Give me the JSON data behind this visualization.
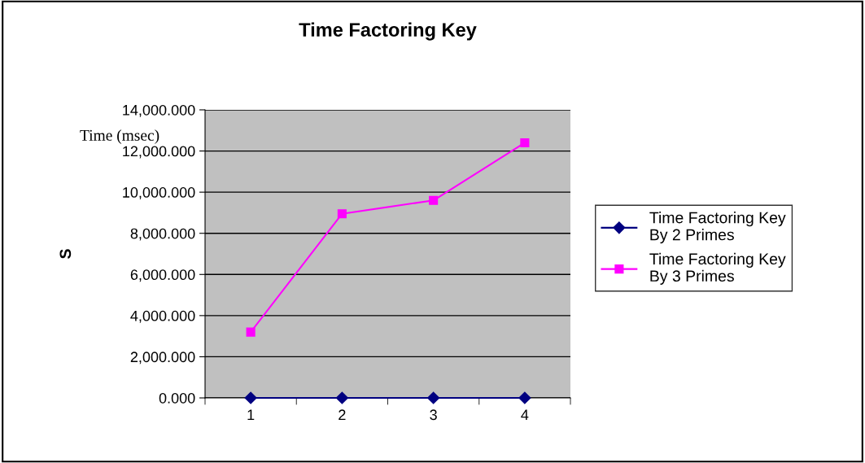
{
  "chart_data": {
    "type": "line",
    "title": "Time Factoring Key",
    "ylabel": "S",
    "annotations": [
      "Time (msec)"
    ],
    "categories": [
      "1",
      "2",
      "3",
      "4"
    ],
    "series": [
      {
        "name": "Time Factoring Key\nBy 2 Primes",
        "color": "#000080",
        "marker": "diamond",
        "values": [
          0,
          0,
          0,
          0
        ]
      },
      {
        "name": "Time Factoring Key\nBy 3 Primes",
        "color": "#ff00ff",
        "marker": "square",
        "values": [
          3200,
          8950,
          9600,
          12400
        ]
      }
    ],
    "ylim": [
      0,
      14000
    ],
    "yticks": [
      {
        "value": 0,
        "label": "0.000"
      },
      {
        "value": 2000,
        "label": "2,000.000"
      },
      {
        "value": 4000,
        "label": "4,000.000"
      },
      {
        "value": 6000,
        "label": "6,000.000"
      },
      {
        "value": 8000,
        "label": "8,000.000"
      },
      {
        "value": 10000,
        "label": "10,000.000"
      },
      {
        "value": 12000,
        "label": "12,000.000"
      },
      {
        "value": 14000,
        "label": "14,000.000"
      }
    ],
    "grid": "y",
    "legend": "right",
    "line_style": "solid"
  }
}
